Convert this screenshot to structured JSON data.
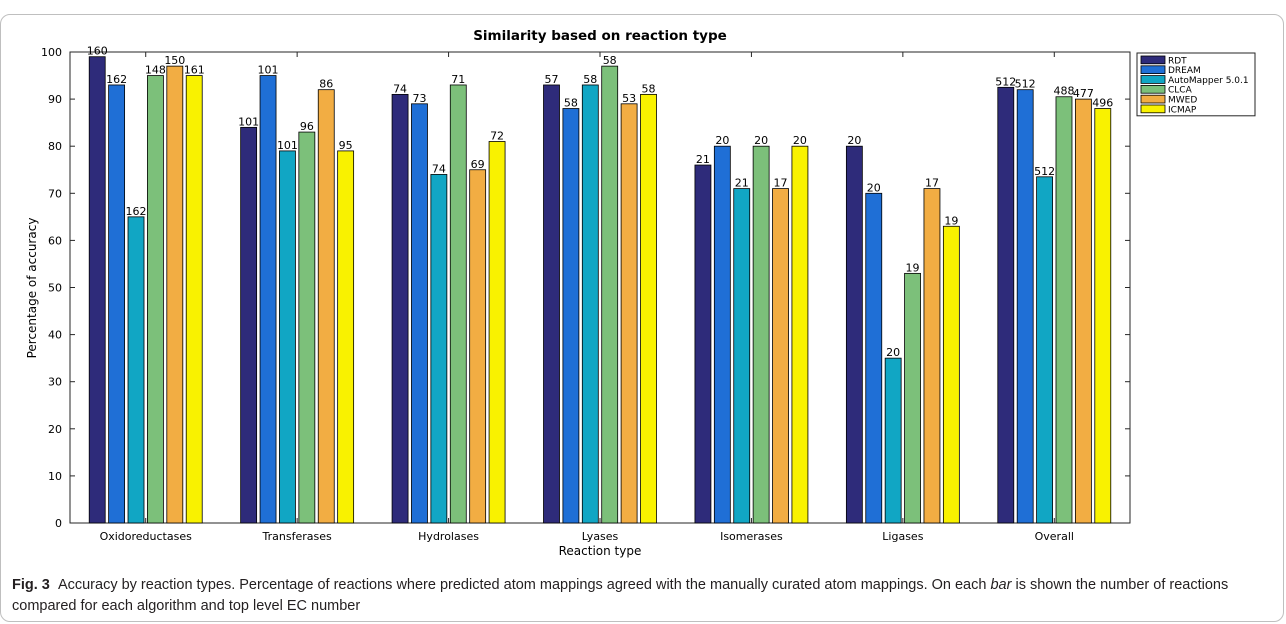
{
  "chart_data": {
    "type": "bar",
    "title": "Similarity based on reaction type",
    "xlabel": "Reaction type",
    "ylabel": "Percentage of accuracy",
    "ylim": [
      0,
      100
    ],
    "yticks": [
      0,
      10,
      20,
      30,
      40,
      50,
      60,
      70,
      80,
      90,
      100
    ],
    "grid": false,
    "legend_position": "top-right",
    "categories": [
      "Oxidoreductases",
      "Transferases",
      "Hydrolases",
      "Lyases",
      "Isomerases",
      "Ligases",
      "Overall"
    ],
    "series": [
      {
        "name": "RDT",
        "color": "#2e2b7a",
        "values": [
          99,
          84,
          91,
          93,
          76,
          80,
          92.5
        ],
        "labels": [
          "160",
          "101",
          "74",
          "57",
          "21",
          "20",
          "512"
        ]
      },
      {
        "name": "DREAM",
        "color": "#1f6fd6",
        "values": [
          93,
          95,
          89,
          88,
          80,
          70,
          92
        ],
        "labels": [
          "162",
          "101",
          "73",
          "58",
          "20",
          "20",
          "512"
        ]
      },
      {
        "name": "AutoMapper 5.0.1",
        "color": "#11a6c4",
        "values": [
          65,
          79,
          74,
          93,
          71,
          35,
          73.5
        ],
        "labels": [
          "162",
          "101",
          "74",
          "58",
          "21",
          "20",
          "512"
        ]
      },
      {
        "name": "CLCA",
        "color": "#7cc07a",
        "values": [
          95,
          83,
          93,
          97,
          80,
          53,
          90.5
        ],
        "labels": [
          "148",
          "96",
          "71",
          "58",
          "20",
          "19",
          "488"
        ]
      },
      {
        "name": "MWED",
        "color": "#f2ad43",
        "values": [
          97,
          92,
          75,
          89,
          71,
          71,
          90
        ],
        "labels": [
          "150",
          "86",
          "69",
          "53",
          "17",
          "17",
          "477"
        ]
      },
      {
        "name": "ICMAP",
        "color": "#f9f200",
        "values": [
          95,
          79,
          81,
          91,
          80,
          63,
          88
        ],
        "labels": [
          "161",
          "95",
          "72",
          "58",
          "20",
          "19",
          "496"
        ]
      }
    ]
  },
  "caption": {
    "fig_label": "Fig. 3",
    "text_1": "Accuracy by reaction types. Percentage of reactions where predicted atom mappings agreed with the manually curated atom mappings. On each ",
    "text_italic": "bar",
    "text_2": " is shown the number of reactions compared for each algorithm and top level EC number"
  }
}
